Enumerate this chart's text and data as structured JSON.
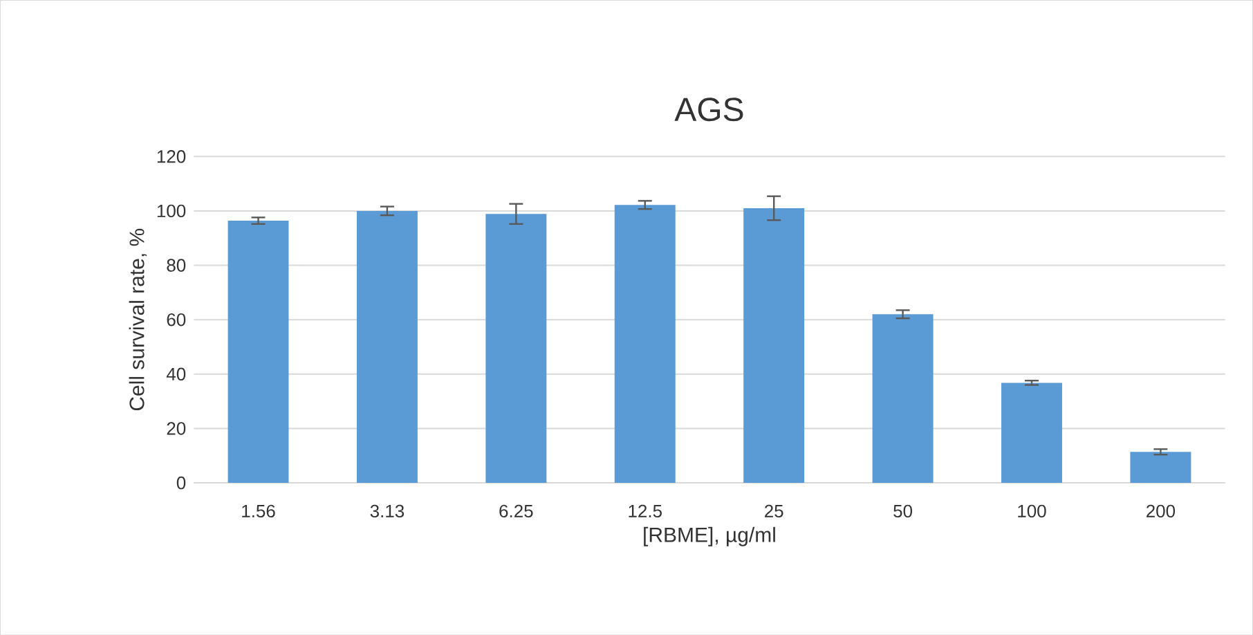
{
  "chart_data": {
    "type": "bar",
    "title": "AGS",
    "xlabel": "[RBME], µg/ml",
    "ylabel": "Cell survival rate, %",
    "categories": [
      "1.56",
      "3.13",
      "6.25",
      "12.5",
      "25",
      "50",
      "100",
      "200"
    ],
    "values": [
      96.4,
      100,
      98.9,
      102.2,
      101,
      62,
      36.8,
      11.4
    ],
    "errors": [
      1.2,
      1.6,
      3.7,
      1.5,
      4.4,
      1.5,
      0.8,
      1
    ],
    "color": "#5b9bd5",
    "ylim": [
      0,
      120
    ],
    "yticks": [
      0,
      20,
      40,
      60,
      80,
      100,
      120
    ],
    "grid": "y"
  }
}
